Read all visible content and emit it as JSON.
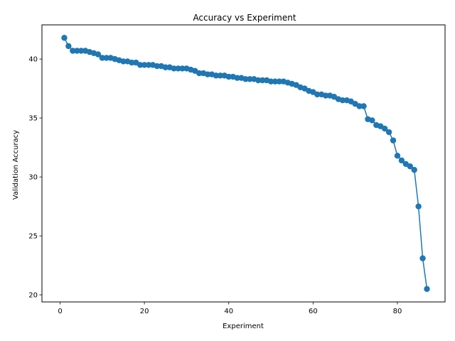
{
  "chart_data": {
    "type": "line",
    "title": "Accuracy vs Experiment",
    "xlabel": "Experiment",
    "ylabel": "Validation Accuracy",
    "xlim": [
      -4.3,
      91.3
    ],
    "ylim": [
      19.4,
      42.9
    ],
    "xticks": [
      0,
      20,
      40,
      60,
      80
    ],
    "yticks": [
      20,
      25,
      30,
      35,
      40
    ],
    "grid": false,
    "marker": "circle",
    "series": [
      {
        "color": "#1f77b4",
        "x": [
          1,
          2,
          3,
          4,
          5,
          6,
          7,
          8,
          9,
          10,
          11,
          12,
          13,
          14,
          15,
          16,
          17,
          18,
          19,
          20,
          21,
          22,
          23,
          24,
          25,
          26,
          27,
          28,
          29,
          30,
          31,
          32,
          33,
          34,
          35,
          36,
          37,
          38,
          39,
          40,
          41,
          42,
          43,
          44,
          45,
          46,
          47,
          48,
          49,
          50,
          51,
          52,
          53,
          54,
          55,
          56,
          57,
          58,
          59,
          60,
          61,
          62,
          63,
          64,
          65,
          66,
          67,
          68,
          69,
          70,
          71,
          72,
          73,
          74,
          75,
          76,
          77,
          78,
          79,
          80,
          81,
          82,
          83,
          84,
          85,
          86,
          87
        ],
        "y": [
          41.8,
          41.1,
          40.7,
          40.7,
          40.7,
          40.7,
          40.6,
          40.5,
          40.4,
          40.1,
          40.1,
          40.1,
          40.0,
          39.9,
          39.8,
          39.8,
          39.7,
          39.7,
          39.5,
          39.5,
          39.5,
          39.5,
          39.4,
          39.4,
          39.3,
          39.3,
          39.2,
          39.2,
          39.2,
          39.2,
          39.1,
          39.0,
          38.8,
          38.8,
          38.7,
          38.7,
          38.6,
          38.6,
          38.6,
          38.5,
          38.5,
          38.4,
          38.4,
          38.3,
          38.3,
          38.3,
          38.2,
          38.2,
          38.2,
          38.1,
          38.1,
          38.1,
          38.1,
          38.0,
          37.9,
          37.8,
          37.6,
          37.5,
          37.3,
          37.2,
          37.0,
          37.0,
          36.9,
          36.9,
          36.8,
          36.6,
          36.5,
          36.5,
          36.4,
          36.2,
          36.0,
          36.0,
          34.9,
          34.8,
          34.4,
          34.3,
          34.1,
          33.8,
          33.1,
          31.8,
          31.4,
          31.1,
          30.9,
          30.6,
          27.5,
          23.1,
          20.5
        ]
      }
    ]
  }
}
